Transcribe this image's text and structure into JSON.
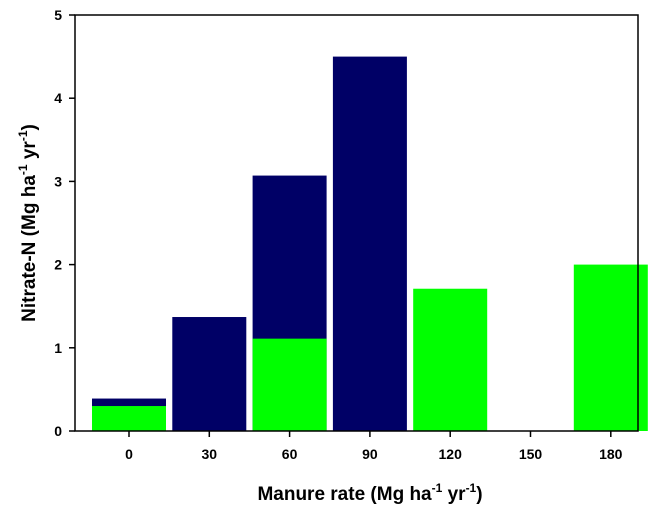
{
  "chart_data": {
    "type": "bar",
    "x_label": [
      "Manure rate (Mg ha",
      "-1",
      " yr",
      "-1",
      ")"
    ],
    "y_label": [
      "Nitrate-N (Mg ha",
      "-1",
      " yr",
      "-1",
      ")"
    ],
    "categories": [
      "0",
      "30",
      "60",
      "90",
      "120",
      "150",
      "180"
    ],
    "series": [
      {
        "color": "#000066",
        "values": [
          0.39,
          1.37,
          3.07,
          4.5,
          null,
          null,
          null
        ]
      },
      {
        "color": "#00ff00",
        "values": [
          0.3,
          null,
          1.11,
          null,
          1.71,
          null,
          2.0
        ]
      }
    ],
    "ylim": [
      0,
      5
    ],
    "yticks": [
      0,
      1,
      2,
      3,
      4,
      5
    ]
  }
}
